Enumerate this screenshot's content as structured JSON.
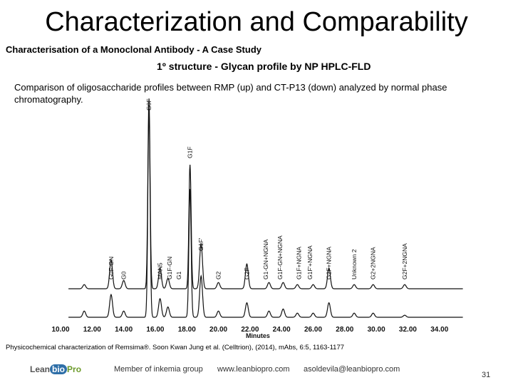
{
  "slide": {
    "title": "Characterization and Comparability",
    "subtitle": "Characterisation of a Monoclonal Antibody - A Case Study",
    "section": "1º structure -  Glycan profile by NP HPLC-FLD",
    "description": "Comparison of oligosaccharide profiles between RMP (up) and CT-P13 (down) analyzed by normal phase chromatography.",
    "footnote": "Physicochemical characterization of Remsima®. Soon Kwan Jung et al. (Celltrion), (2014), mAbs, 6:5, 1163-1177",
    "logo": {
      "part1": "Lean",
      "part2": "bio",
      "part3": "Pro"
    },
    "footer": {
      "member": "Member of inkemia group",
      "website": "www.leanbiopro.com",
      "email": "asoldevila@leanbiopro.com"
    },
    "page_number": "31"
  },
  "chart_data": {
    "type": "line",
    "xlabel": "Minutes",
    "xlim": [
      10,
      35.5
    ],
    "x_ticks": [
      "10.00",
      "12.00",
      "14.00",
      "16.00",
      "18.00",
      "20.00",
      "22.00",
      "24.00",
      "26.00",
      "28.00",
      "30.00",
      "32.00",
      "34.00"
    ],
    "series": [
      {
        "name": "RMP",
        "baseline": 0,
        "peaks": [
          {
            "x": 11.5,
            "h": 2
          },
          {
            "x": 13.2,
            "h": 14
          },
          {
            "x": 14.0,
            "h": 4
          },
          {
            "x": 15.6,
            "h": 92
          },
          {
            "x": 16.3,
            "h": 10
          },
          {
            "x": 16.8,
            "h": 5
          },
          {
            "x": 18.2,
            "h": 60
          },
          {
            "x": 18.9,
            "h": 22
          },
          {
            "x": 20.0,
            "h": 3
          },
          {
            "x": 21.8,
            "h": 12
          },
          {
            "x": 23.2,
            "h": 3
          },
          {
            "x": 24.1,
            "h": 3
          },
          {
            "x": 25.0,
            "h": 2
          },
          {
            "x": 26.0,
            "h": 2
          },
          {
            "x": 27.0,
            "h": 10
          },
          {
            "x": 28.6,
            "h": 2
          },
          {
            "x": 29.8,
            "h": 2
          },
          {
            "x": 31.8,
            "h": 2
          }
        ]
      },
      {
        "name": "CT-P13",
        "baseline": 0,
        "peaks": [
          {
            "x": 11.5,
            "h": 3
          },
          {
            "x": 13.2,
            "h": 11
          },
          {
            "x": 14.0,
            "h": 3
          },
          {
            "x": 15.6,
            "h": 100
          },
          {
            "x": 16.3,
            "h": 9
          },
          {
            "x": 16.8,
            "h": 5
          },
          {
            "x": 18.2,
            "h": 62
          },
          {
            "x": 18.9,
            "h": 20
          },
          {
            "x": 20.0,
            "h": 3
          },
          {
            "x": 21.8,
            "h": 7
          },
          {
            "x": 23.2,
            "h": 3
          },
          {
            "x": 24.1,
            "h": 4
          },
          {
            "x": 25.0,
            "h": 2
          },
          {
            "x": 26.0,
            "h": 2
          },
          {
            "x": 27.0,
            "h": 7
          },
          {
            "x": 28.6,
            "h": 2
          },
          {
            "x": 29.8,
            "h": 2
          },
          {
            "x": 31.8,
            "h": 1
          }
        ]
      }
    ],
    "annotations": [
      {
        "label": "G0F-GN",
        "x": 13.2
      },
      {
        "label": "G0",
        "x": 14.0
      },
      {
        "label": "G0F",
        "x": 15.6
      },
      {
        "label": "MAN5",
        "x": 16.3
      },
      {
        "label": "G1F-GN",
        "x": 16.9
      },
      {
        "label": "G1",
        "x": 17.5
      },
      {
        "label": "G1F",
        "x": 18.2
      },
      {
        "label": "G1F'",
        "x": 18.9
      },
      {
        "label": "G2",
        "x": 20.0
      },
      {
        "label": "G2F",
        "x": 21.8
      },
      {
        "label": "G1-GN+NGNA",
        "x": 23.0
      },
      {
        "label": "G1F-GN+NGNA",
        "x": 23.9
      },
      {
        "label": "G1F+NGNA",
        "x": 25.1
      },
      {
        "label": "G1F'+NGNA",
        "x": 25.8
      },
      {
        "label": "G2F+NGNA",
        "x": 27.0
      },
      {
        "label": "Unknown 2",
        "x": 28.6
      },
      {
        "label": "G2+2NGNA",
        "x": 29.8
      },
      {
        "label": "G2F+2NGNA",
        "x": 31.8
      }
    ]
  }
}
